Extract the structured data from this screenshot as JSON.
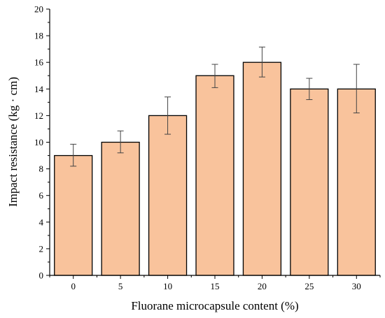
{
  "chart_data": {
    "type": "bar",
    "categories": [
      "0",
      "5",
      "10",
      "15",
      "20",
      "25",
      "30"
    ],
    "values": [
      9,
      10,
      12,
      15,
      16,
      14,
      14
    ],
    "error_low": [
      8.2,
      9.2,
      10.6,
      14.1,
      14.9,
      13.2,
      12.2
    ],
    "error_high": [
      9.85,
      10.85,
      13.4,
      15.85,
      17.15,
      14.8,
      15.85
    ],
    "title": "",
    "xlabel": "Fluorane microcapsule content (%)",
    "ylabel": "Impact resistance (kg · cm)",
    "ylim": [
      0,
      20
    ],
    "yticks": [
      "0",
      "2",
      "4",
      "6",
      "8",
      "10",
      "12",
      "14",
      "16",
      "18",
      "20"
    ],
    "bar_color": "#f9c39c",
    "grid": false,
    "legend": "none"
  }
}
